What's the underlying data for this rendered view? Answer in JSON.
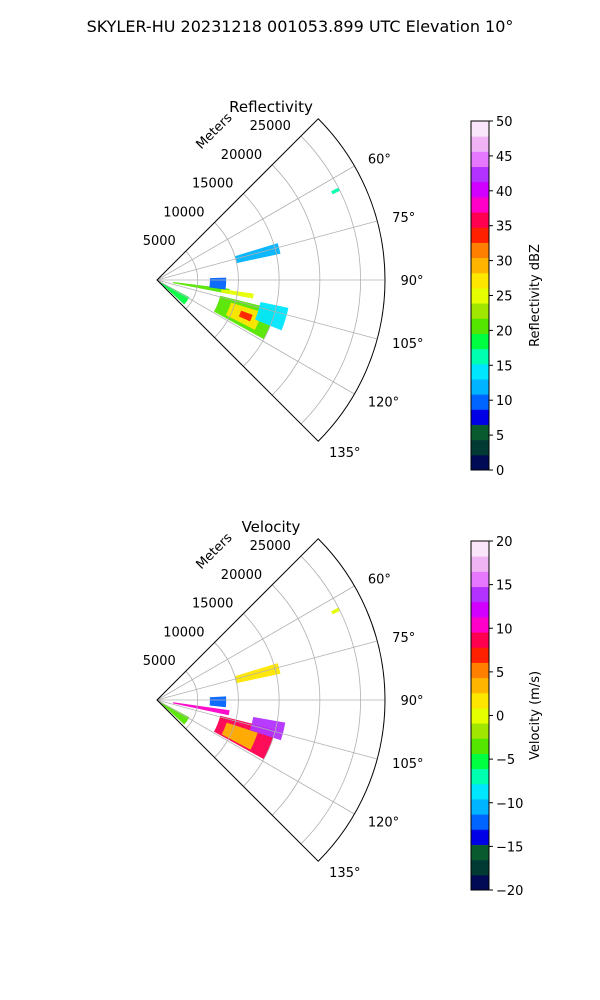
{
  "figure": {
    "suptitle": "SKYLER-HU  20231218  001053.899 UTC Elevation 10°"
  },
  "chart_data": [
    {
      "type": "heatmap",
      "projection": "polar-sector",
      "title": "Reflectivity",
      "theta_direction": "clockwise-from-north",
      "theta_range_deg": [
        45,
        135
      ],
      "theta_ticks": [
        "60°",
        "75°",
        "90°",
        "105°",
        "120°",
        "135°"
      ],
      "theta_tick_values": [
        60,
        75,
        90,
        105,
        120,
        135
      ],
      "r_label": "Meters",
      "r_range": [
        0,
        28000
      ],
      "r_ticks": [
        "5000",
        "10000",
        "15000",
        "20000",
        "25000"
      ],
      "r_tick_values": [
        5000,
        10000,
        15000,
        20000,
        25000
      ],
      "grid": true,
      "colorbar": {
        "label": "Reflectivity dBZ",
        "range": [
          0,
          50
        ],
        "ticks": [
          "0",
          "5",
          "10",
          "15",
          "20",
          "25",
          "30",
          "35",
          "40",
          "45",
          "50"
        ],
        "tick_values": [
          0,
          5,
          10,
          15,
          20,
          25,
          30,
          35,
          40,
          45,
          50
        ]
      },
      "data_regions": [
        {
          "az_range": [
            118,
            132
          ],
          "r_range": [
            0,
            4500
          ],
          "value": 18
        },
        {
          "az_range": [
            97,
            101
          ],
          "r_range": [
            2000,
            9000
          ],
          "value": 20
        },
        {
          "az_range": [
            98,
            101
          ],
          "r_range": [
            8000,
            12000
          ],
          "value": 24
        },
        {
          "az_range": [
            88,
            98
          ],
          "r_range": [
            6500,
            8500
          ],
          "value": 9
        },
        {
          "az_range": [
            104,
            119
          ],
          "r_range": [
            8000,
            15000
          ],
          "value": 20
        },
        {
          "az_range": [
            107,
            117
          ],
          "r_range": [
            9500,
            13500
          ],
          "value": 28
        },
        {
          "az_range": [
            110,
            114
          ],
          "r_range": [
            11000,
            12500
          ],
          "value": 34
        },
        {
          "az_range": [
            102,
            112
          ],
          "r_range": [
            13000,
            16500
          ],
          "value": 14
        },
        {
          "az_range": [
            73,
            78
          ],
          "r_range": [
            10000,
            15500
          ],
          "value": 12
        },
        {
          "az_range": [
            63,
            64
          ],
          "r_range": [
            24000,
            25000
          ],
          "value": 16
        }
      ]
    },
    {
      "type": "heatmap",
      "projection": "polar-sector",
      "title": "Velocity",
      "theta_direction": "clockwise-from-north",
      "theta_range_deg": [
        45,
        135
      ],
      "theta_ticks": [
        "60°",
        "75°",
        "90°",
        "105°",
        "120°",
        "135°"
      ],
      "theta_tick_values": [
        60,
        75,
        90,
        105,
        120,
        135
      ],
      "r_label": "Meters",
      "r_range": [
        0,
        28000
      ],
      "r_ticks": [
        "5000",
        "10000",
        "15000",
        "20000",
        "25000"
      ],
      "r_tick_values": [
        5000,
        10000,
        15000,
        20000,
        25000
      ],
      "grid": true,
      "colorbar": {
        "label": "Velocity (m/s)",
        "range": [
          -20,
          20
        ],
        "ticks": [
          "−20",
          "−15",
          "−10",
          "−5",
          "0",
          "5",
          "10",
          "15",
          "20"
        ],
        "tick_values": [
          -20,
          -15,
          -10,
          -5,
          0,
          5,
          10,
          15,
          20
        ]
      },
      "data_regions": [
        {
          "az_range": [
            118,
            132
          ],
          "r_range": [
            0,
            4500
          ],
          "value": -3
        },
        {
          "az_range": [
            98,
            102
          ],
          "r_range": [
            2000,
            9000
          ],
          "value": 10
        },
        {
          "az_range": [
            87,
            96
          ],
          "r_range": [
            6500,
            8500
          ],
          "value": -12
        },
        {
          "az_range": [
            104,
            119
          ],
          "r_range": [
            8000,
            15000
          ],
          "value": 9
        },
        {
          "az_range": [
            108,
            118
          ],
          "r_range": [
            9000,
            13000
          ],
          "value": 4
        },
        {
          "az_range": [
            100,
            108
          ],
          "r_range": [
            12000,
            16000
          ],
          "value": 14
        },
        {
          "az_range": [
            73,
            78
          ],
          "r_range": [
            10000,
            15500
          ],
          "value": 1
        },
        {
          "az_range": [
            63,
            64
          ],
          "r_range": [
            24000,
            25000
          ],
          "value": 0
        }
      ]
    }
  ],
  "colormap_stops": [
    "#000a55",
    "#003a33",
    "#0a5a30",
    "#0000e6",
    "#0064ff",
    "#00b4ff",
    "#00e6ff",
    "#00ffb0",
    "#00ff40",
    "#55e600",
    "#a0e600",
    "#e6ff00",
    "#ffe600",
    "#ffb400",
    "#ff8000",
    "#ff2000",
    "#ff0050",
    "#ff00c8",
    "#d200ff",
    "#b432ff",
    "#e678ff",
    "#f0b4f5",
    "#fae6fa"
  ]
}
